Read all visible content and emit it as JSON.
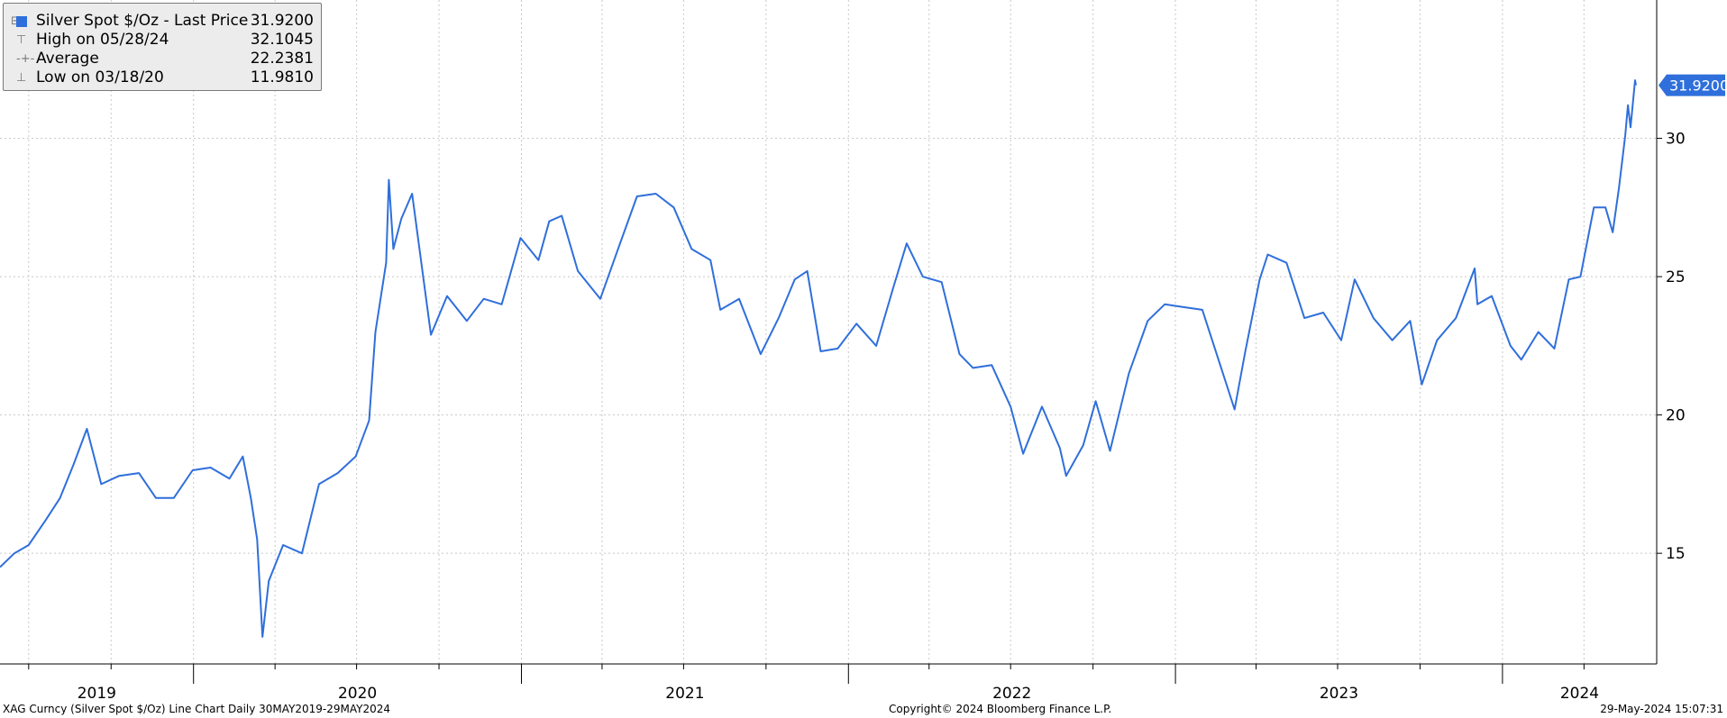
{
  "legend": {
    "series_label": "Silver Spot $/Oz - Last Price",
    "series_value": "31.9200",
    "high_label": "High on 05/28/24",
    "high_value": "32.1045",
    "avg_label": "Average",
    "avg_value": "22.2381",
    "low_label": "Low on 03/18/20",
    "low_value": "11.9810"
  },
  "last_price_badge": "31.9200",
  "footer": {
    "left": "XAG Curncy (Silver Spot  $/Oz) Line Chart  Daily 30MAY2019-29MAY2024",
    "center": "Copyright© 2024 Bloomberg Finance L.P.",
    "right": "29-May-2024 15:07:31"
  },
  "colors": {
    "line": "#2f6fdb",
    "grid": "#c8c8c8",
    "badge": "#2f6fdb"
  },
  "chart_data": {
    "type": "line",
    "series": [
      {
        "name": "Silver Spot $/Oz - Last Price",
        "x": [
          "2019-05-30",
          "2019-06-15",
          "2019-07-01",
          "2019-07-20",
          "2019-08-05",
          "2019-08-20",
          "2019-09-04",
          "2019-09-20",
          "2019-10-10",
          "2019-11-01",
          "2019-11-20",
          "2019-12-10",
          "2019-12-31",
          "2020-01-20",
          "2020-02-10",
          "2020-02-25",
          "2020-03-05",
          "2020-03-12",
          "2020-03-18",
          "2020-03-25",
          "2020-04-10",
          "2020-05-01",
          "2020-05-20",
          "2020-06-10",
          "2020-06-30",
          "2020-07-15",
          "2020-07-22",
          "2020-08-03",
          "2020-08-06",
          "2020-08-11",
          "2020-08-20",
          "2020-09-01",
          "2020-09-22",
          "2020-10-10",
          "2020-11-01",
          "2020-11-20",
          "2020-12-10",
          "2020-12-31",
          "2021-01-20",
          "2021-02-01",
          "2021-02-15",
          "2021-03-05",
          "2021-03-30",
          "2021-04-20",
          "2021-05-10",
          "2021-05-31",
          "2021-06-20",
          "2021-07-10",
          "2021-07-31",
          "2021-08-11",
          "2021-09-01",
          "2021-09-25",
          "2021-10-15",
          "2021-11-02",
          "2021-11-16",
          "2021-12-01",
          "2021-12-20",
          "2022-01-10",
          "2022-02-01",
          "2022-02-20",
          "2022-03-07",
          "2022-03-25",
          "2022-04-15",
          "2022-05-05",
          "2022-05-20",
          "2022-06-10",
          "2022-07-01",
          "2022-07-15",
          "2022-08-05",
          "2022-08-25",
          "2022-09-01",
          "2022-09-20",
          "2022-10-04",
          "2022-10-20",
          "2022-11-10",
          "2022-12-01",
          "2022-12-20",
          "2023-01-10",
          "2023-01-31",
          "2023-02-20",
          "2023-03-08",
          "2023-03-20",
          "2023-04-05",
          "2023-04-14",
          "2023-05-05",
          "2023-05-25",
          "2023-06-15",
          "2023-07-05",
          "2023-07-20",
          "2023-08-10",
          "2023-08-31",
          "2023-09-20",
          "2023-10-03",
          "2023-10-20",
          "2023-11-10",
          "2023-12-01",
          "2023-12-04",
          "2023-12-20",
          "2024-01-10",
          "2024-01-22",
          "2024-02-10",
          "2024-02-28",
          "2024-03-15",
          "2024-03-28",
          "2024-04-12",
          "2024-04-25",
          "2024-05-03",
          "2024-05-10",
          "2024-05-17",
          "2024-05-20",
          "2024-05-23",
          "2024-05-28",
          "2024-05-29"
        ],
        "values": [
          14.5,
          15.0,
          15.3,
          16.2,
          17.0,
          18.2,
          19.5,
          17.5,
          17.8,
          17.9,
          17.0,
          17.0,
          18.0,
          18.1,
          17.7,
          18.5,
          17.0,
          15.5,
          11.98,
          14.0,
          15.3,
          15.0,
          17.5,
          17.9,
          18.5,
          19.8,
          23.0,
          25.5,
          28.5,
          26.0,
          27.1,
          28.0,
          22.9,
          24.3,
          23.4,
          24.2,
          24.0,
          26.4,
          25.6,
          27.0,
          27.2,
          25.2,
          24.2,
          26.1,
          27.9,
          28.0,
          27.5,
          26.0,
          25.6,
          23.8,
          24.2,
          22.2,
          23.5,
          24.9,
          25.2,
          22.3,
          22.4,
          23.3,
          22.5,
          24.6,
          26.2,
          25.0,
          24.8,
          22.2,
          21.7,
          21.8,
          20.3,
          18.6,
          20.3,
          18.8,
          17.8,
          18.9,
          20.5,
          18.7,
          21.5,
          23.4,
          24.0,
          23.9,
          23.8,
          21.8,
          20.2,
          22.3,
          24.9,
          25.8,
          25.5,
          23.5,
          23.7,
          22.7,
          24.9,
          23.5,
          22.7,
          23.4,
          21.1,
          22.7,
          23.5,
          25.3,
          24.0,
          24.3,
          22.5,
          22.0,
          23.0,
          22.4,
          24.9,
          25.0,
          27.5,
          27.5,
          26.6,
          28.2,
          30.1,
          31.2,
          30.4,
          32.1,
          31.92
        ]
      }
    ],
    "y_ticks": [
      15,
      20,
      25,
      30
    ],
    "ylim": [
      11,
      35
    ],
    "x_labels": [
      "2019",
      "2020",
      "2021",
      "2022",
      "2023",
      "2024"
    ],
    "grid": true,
    "legend_position": "top-left"
  }
}
